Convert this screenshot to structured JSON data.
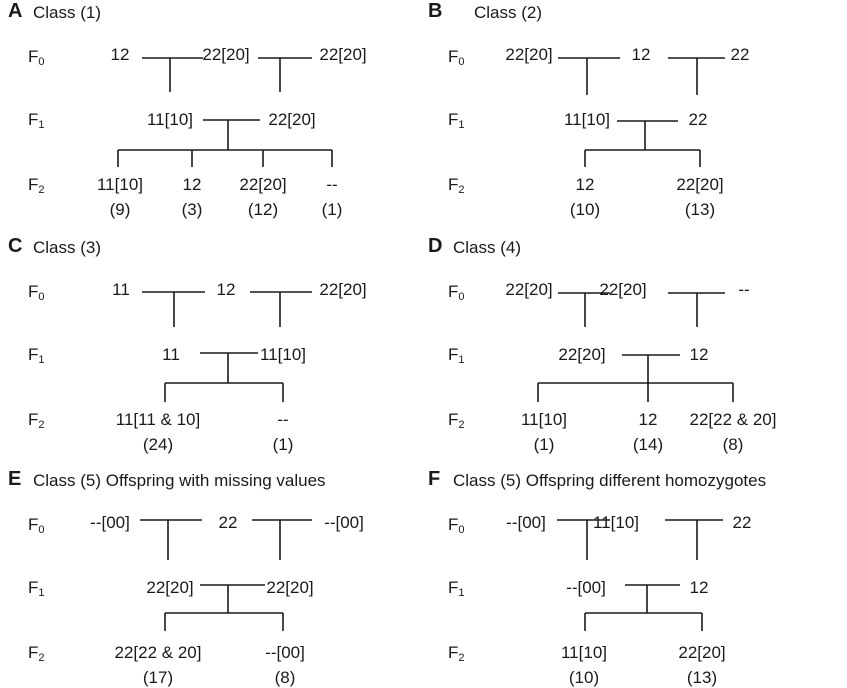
{
  "panels": [
    {
      "letter": "A",
      "title": "Class (1)",
      "f0": [
        "12",
        "22[20]",
        "22[20]"
      ],
      "f1": [
        "11[10]",
        "22[20]"
      ],
      "f2": [
        {
          "genotype": "11[10]",
          "count": "(9)"
        },
        {
          "genotype": "12",
          "count": "(3)"
        },
        {
          "genotype": "22[20]",
          "count": "(12)"
        },
        {
          "genotype": "--",
          "count": "(1)"
        }
      ]
    },
    {
      "letter": "B",
      "title": "Class (2)",
      "f0": [
        "22[20]",
        "12",
        "22"
      ],
      "f1": [
        "11[10]",
        "22"
      ],
      "f2": [
        {
          "genotype": "12",
          "count": "(10)"
        },
        {
          "genotype": "22[20]",
          "count": "(13)"
        }
      ]
    },
    {
      "letter": "C",
      "title": "Class (3)",
      "f0": [
        "11",
        "12",
        "22[20]"
      ],
      "f1": [
        "11",
        "11[10]"
      ],
      "f2": [
        {
          "genotype": "11[11 & 10]",
          "count": "(24)"
        },
        {
          "genotype": "--",
          "count": "(1)"
        }
      ]
    },
    {
      "letter": "D",
      "title": "Class (4)",
      "f0": [
        "22[20]",
        "22[20]",
        "--"
      ],
      "f1": [
        "22[20]",
        "12"
      ],
      "f2": [
        {
          "genotype": "11[10]",
          "count": "(1)"
        },
        {
          "genotype": "12",
          "count": "(14)"
        },
        {
          "genotype": "22[22 & 20]",
          "count": "(8)"
        }
      ]
    },
    {
      "letter": "E",
      "title": "Class (5) Offspring with missing values",
      "f0": [
        "--[00]",
        "22",
        "--[00]"
      ],
      "f1": [
        "22[20]",
        "22[20]"
      ],
      "f2": [
        {
          "genotype": "22[22 & 20]",
          "count": "(17)"
        },
        {
          "genotype": "--[00]",
          "count": "(8)"
        }
      ]
    },
    {
      "letter": "F",
      "title": "Class (5) Offspring different homozygotes",
      "f0": [
        "--[00]",
        "11[10]",
        "22"
      ],
      "f1": [
        "--[00]",
        "12"
      ],
      "f2": [
        {
          "genotype": "11[10]",
          "count": "(10)"
        },
        {
          "genotype": "22[20]",
          "count": "(13)"
        }
      ]
    }
  ],
  "generation_labels": {
    "f0": {
      "base": "F",
      "sub": "0"
    },
    "f1": {
      "base": "F",
      "sub": "1"
    },
    "f2": {
      "base": "F",
      "sub": "2"
    }
  }
}
